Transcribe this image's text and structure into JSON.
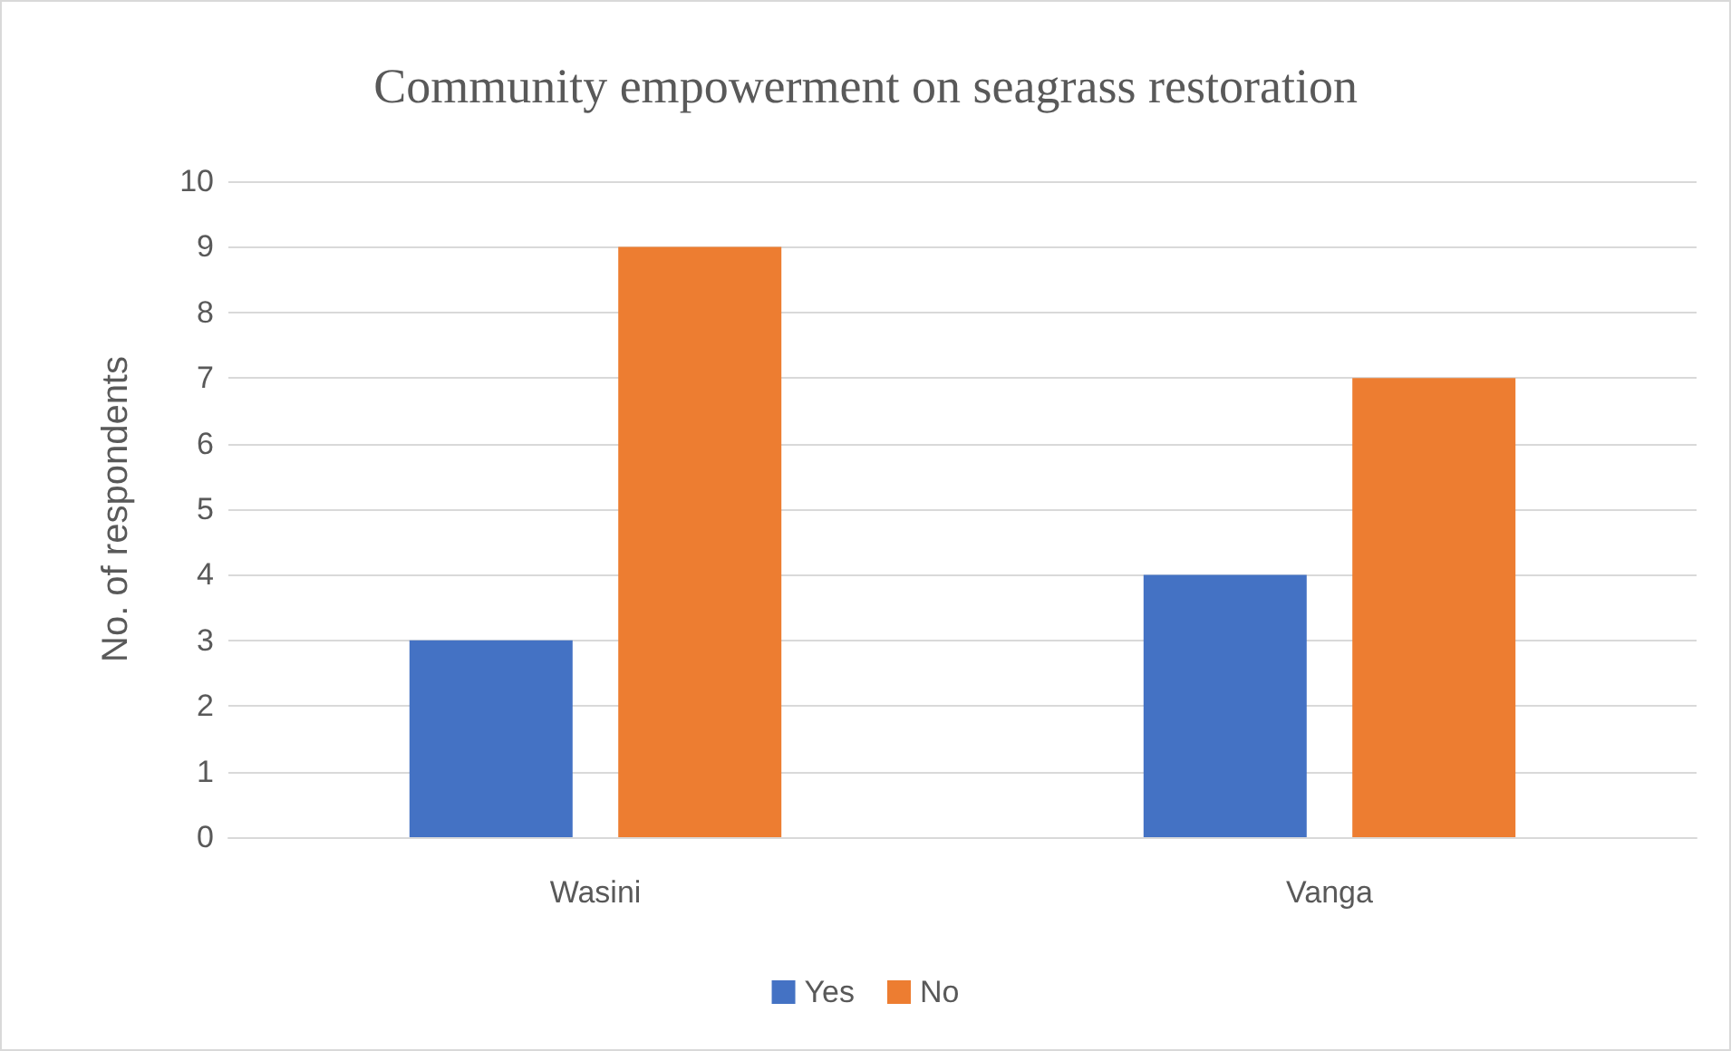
{
  "chart_data": {
    "type": "bar",
    "title": "Community empowerment on seagrass restoration",
    "ylabel": "No. of respondents",
    "categories": [
      "Wasini",
      "Vanga"
    ],
    "series": [
      {
        "name": "Yes",
        "color": "#4472c4",
        "values": [
          3,
          4
        ]
      },
      {
        "name": "No",
        "color": "#ed7d31",
        "values": [
          9,
          7
        ]
      }
    ],
    "ylim": [
      0,
      10
    ],
    "yticks": [
      0,
      1,
      2,
      3,
      4,
      5,
      6,
      7,
      8,
      9,
      10
    ],
    "grid": "y",
    "legend": "bottom"
  }
}
